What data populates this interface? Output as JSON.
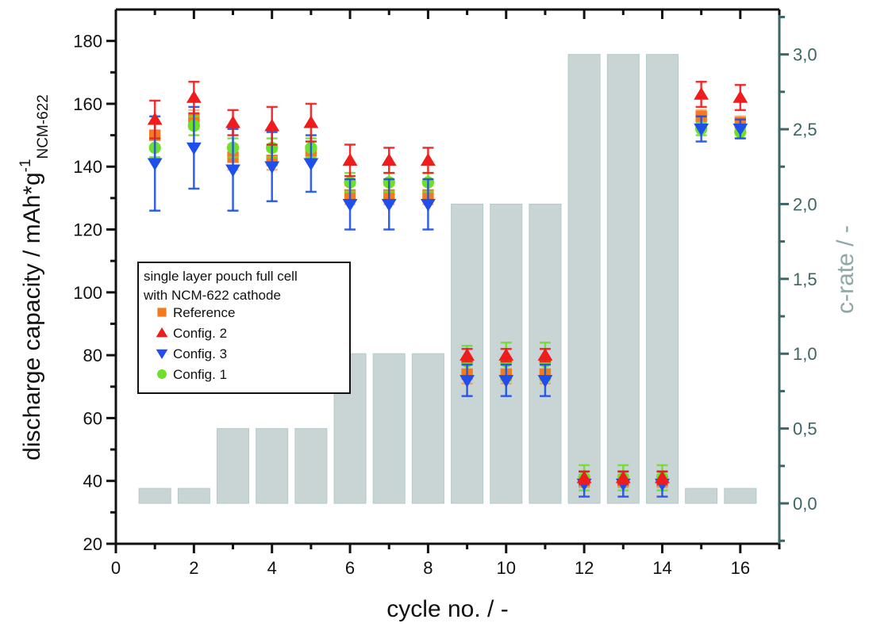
{
  "chart_data": {
    "type": "scatter",
    "title": "",
    "xlabel": "cycle no. / -",
    "ylabel_main": "discharge capacity / mAh*g",
    "ylabel_sup": "-1",
    "ylabel_sub": "NCM-622",
    "y2label": "c-rate / -",
    "xlim": [
      0,
      17
    ],
    "ylim": [
      20,
      190
    ],
    "y2lim": [
      -0.27,
      3.3
    ],
    "x_ticks": [
      0,
      2,
      4,
      6,
      8,
      10,
      12,
      14,
      16
    ],
    "x_tick_labels": [
      "0",
      "2",
      "4",
      "6",
      "8",
      "10",
      "12",
      "14",
      "16"
    ],
    "y_ticks": [
      20,
      40,
      60,
      80,
      100,
      120,
      140,
      160,
      180
    ],
    "y_tick_labels": [
      "20",
      "40",
      "60",
      "80",
      "100",
      "120",
      "140",
      "160",
      "180"
    ],
    "y2_ticks": [
      0.0,
      0.5,
      1.0,
      1.5,
      2.0,
      2.5,
      3.0
    ],
    "y2_tick_labels": [
      "0,0",
      "0,5",
      "1,0",
      "1,5",
      "2,0",
      "2,5",
      "3,0"
    ],
    "grid": false,
    "legend": {
      "placement": "center-left",
      "title_lines": [
        "single layer pouch full cell",
        "with NCM-622 cathode"
      ],
      "entries": [
        {
          "name": "Reference",
          "marker": "square",
          "color": "#f47a20"
        },
        {
          "name": "Config. 2",
          "marker": "triangle-up",
          "color": "#ee1c1c"
        },
        {
          "name": "Config. 3",
          "marker": "triangle-down",
          "color": "#1f4fea"
        },
        {
          "name": "Config. 1",
          "marker": "circle",
          "color": "#6fe02a"
        }
      ]
    },
    "c_rate_bars": {
      "axis": "right",
      "color": "#c9d5d4",
      "x": [
        1,
        2,
        3,
        4,
        5,
        6,
        7,
        8,
        9,
        10,
        11,
        12,
        13,
        14,
        15,
        16
      ],
      "values": [
        0.1,
        0.1,
        0.5,
        0.5,
        0.5,
        1.0,
        1.0,
        1.0,
        2.0,
        2.0,
        2.0,
        3.0,
        3.0,
        3.0,
        0.1,
        0.1
      ]
    },
    "x": [
      1,
      2,
      3,
      4,
      5,
      6,
      7,
      8,
      9,
      10,
      11,
      12,
      13,
      14,
      15,
      16
    ],
    "series": [
      {
        "name": "Reference",
        "marker": "square",
        "color": "#f47a20",
        "values": [
          150,
          155,
          143,
          142,
          145,
          131,
          131,
          131,
          74,
          74,
          74,
          40,
          40,
          40,
          156,
          154
        ],
        "errors": [
          4,
          3,
          4,
          3,
          3,
          3,
          3,
          3,
          3,
          3,
          3,
          2,
          2,
          2,
          2,
          2
        ]
      },
      {
        "name": "Config. 2",
        "marker": "triangle-up",
        "color": "#ee1c1c",
        "values": [
          155,
          162,
          154,
          153,
          154,
          142,
          142,
          142,
          80,
          80,
          80,
          41,
          41,
          41,
          163,
          162
        ],
        "errors": [
          6,
          5,
          4,
          6,
          6,
          5,
          4,
          4,
          2,
          2,
          2,
          2,
          2,
          2,
          4,
          4
        ]
      },
      {
        "name": "Config. 3",
        "marker": "triangle-down",
        "color": "#1f4fea",
        "values": [
          141,
          146,
          139,
          140,
          141,
          128,
          128,
          128,
          72,
          72,
          72,
          39,
          39,
          39,
          152,
          152
        ],
        "errors": [
          15,
          13,
          13,
          11,
          9,
          8,
          8,
          8,
          5,
          5,
          5,
          4,
          4,
          4,
          4,
          3
        ]
      },
      {
        "name": "Config. 1",
        "marker": "circle",
        "color": "#6fe02a",
        "values": [
          146,
          153,
          146,
          146,
          146,
          135,
          135,
          135,
          78,
          78,
          78,
          41,
          41,
          41,
          152,
          151
        ],
        "errors": [
          3,
          3,
          3,
          3,
          3,
          3,
          3,
          3,
          5,
          6,
          6,
          4,
          4,
          4,
          2,
          2
        ]
      }
    ]
  }
}
